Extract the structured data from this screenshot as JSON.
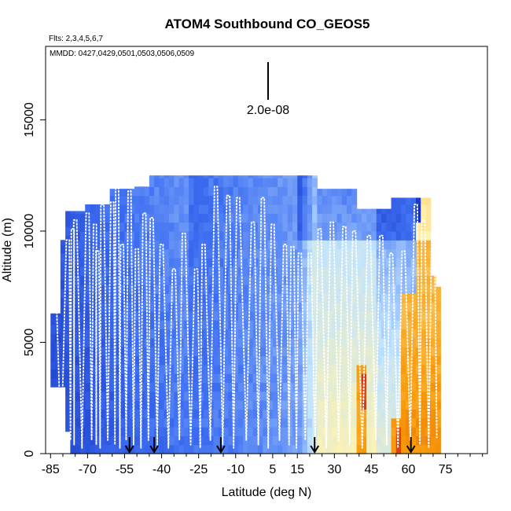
{
  "chart_data": {
    "type": "heatmap",
    "title": "ATOM4 Southbound CO_GEOS5",
    "flights_note": "Flts: 2,3,4,5,6,7",
    "dates_note": "MMDD: 0427,0429,0501,0503,0506,0509",
    "scale_label": "2.0e-08",
    "xlabel": "Latitude (deg N)",
    "ylabel": "Altitude (m)",
    "xlim": [
      -87,
      92
    ],
    "ylim": [
      0,
      18300
    ],
    "x_ticks": [
      -85,
      -70,
      -55,
      -40,
      -25,
      -10,
      5,
      15,
      30,
      45,
      60,
      75
    ],
    "x_tick_labels": [
      "-85",
      "-70",
      "-55",
      "-40",
      "-25",
      "-10",
      "5",
      "15",
      "30",
      "45",
      "60",
      "75"
    ],
    "y_ticks": [
      0,
      5000,
      10000,
      15000
    ],
    "y_tick_labels": [
      "0",
      "5000",
      "10000",
      "15000"
    ],
    "arrow_latitudes": [
      -53,
      -43,
      -16,
      22,
      61
    ],
    "colors": {
      "deep_blue": "#0a1fb0",
      "mid_blue": "#3d6ef2",
      "light_blue": "#bfe3ff",
      "pale_yellow": "#fff3b0",
      "orange": "#f99a0a",
      "red": "#cc1a0f",
      "flight_track": "#ffffff"
    }
  }
}
